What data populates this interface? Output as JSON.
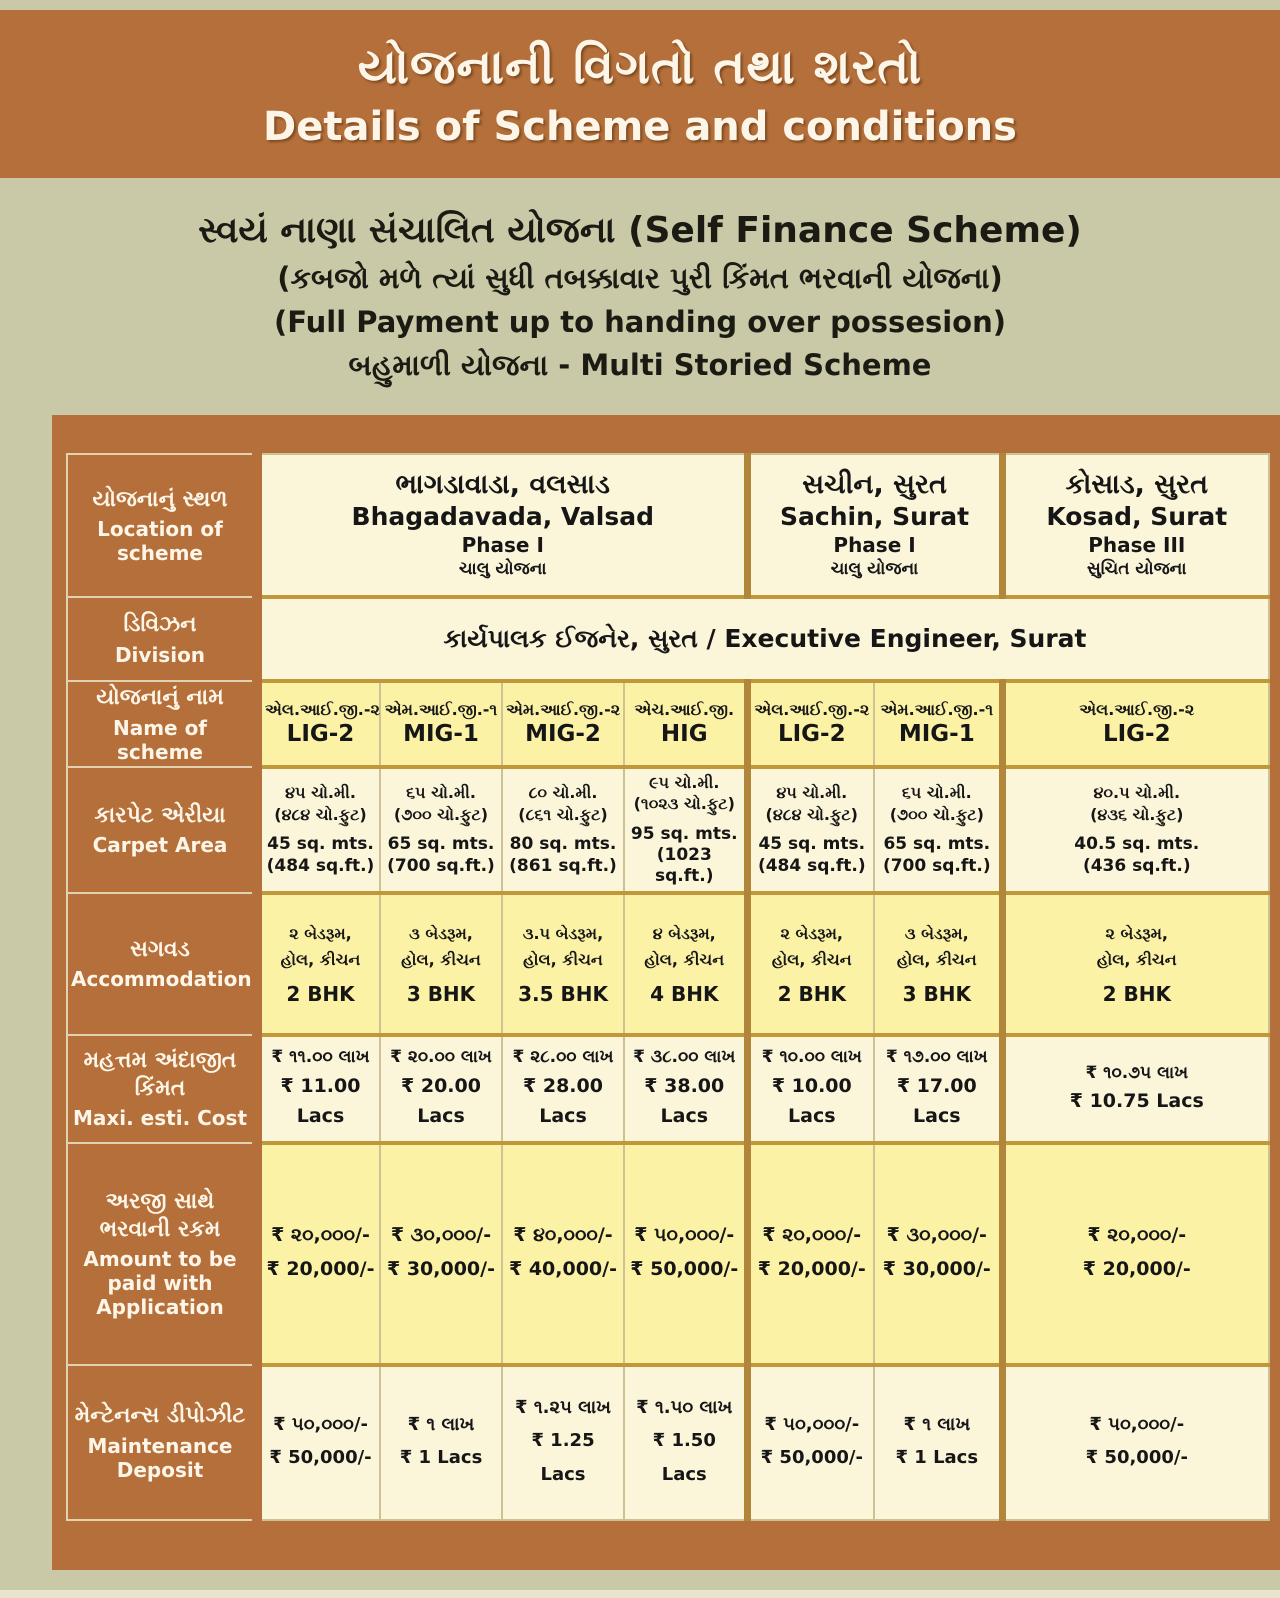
{
  "colors": {
    "page_background": "#c9c9a8",
    "brand_brown": "#b46f3a",
    "cell_cream": "#fbf5da",
    "cell_yellow": "#fcf2a6",
    "border_gold": "#c09739",
    "label_text": "#fdf6e8"
  },
  "header": {
    "title_gu": "યોજનાની વિગતો તથા શરતો",
    "title_en": "Details of Scheme and conditions"
  },
  "subtitle": {
    "line1": "સ્વયં નાણા સંચાલિત યોજના (Self Finance Scheme)",
    "line2": "(કબજો મળે ત્યાં સુધી તબક્કાવાર પુરી કિંમત ભરવાની યોજના)",
    "line3": "(Full Payment up to handing over possesion)",
    "line4": "બહુમાળી યોજના - Multi Storied Scheme"
  },
  "table": {
    "labels": {
      "location": {
        "gu": "યોજનાનું સ્થળ",
        "en": "Location of scheme"
      },
      "division": {
        "gu": "ડિવિઝન",
        "en": "Division"
      },
      "scheme_name": {
        "gu": "યોજનાનું નામ",
        "en": "Name of scheme"
      },
      "carpet": {
        "gu": "કારપેટ એરીયા",
        "en": "Carpet Area"
      },
      "accommodation": {
        "gu": "સગવડ",
        "en": "Accommodation"
      },
      "cost": {
        "gu": "મહત્તમ અંદાજીત કિંમત",
        "en": "Maxi. esti. Cost"
      },
      "amount": {
        "gu": "અરજી સાથે ભરવાની રકમ",
        "en": "Amount to be paid with Application"
      },
      "deposit": {
        "gu": "મેન્ટેનન્સ ડીપોઝીટ",
        "en": "Maintenance Deposit"
      }
    },
    "locations": [
      {
        "gu": "ભાગડાવાડા, વલસાડ",
        "en": "Bhagadavada, Valsad",
        "phase": "Phase I",
        "status": "ચાલુ યોજના"
      },
      {
        "gu": "સચીન, સુરત",
        "en": "Sachin, Surat",
        "phase": "Phase I",
        "status": "ચાલુ યોજના"
      },
      {
        "gu": "કોસાડ, સુરત",
        "en": "Kosad, Surat",
        "phase": "Phase III",
        "status": "સુચિત યોજના"
      }
    ],
    "division_value": "કાર્યપાલક ઈજનેર, સુરત / Executive Engineer, Surat",
    "columns": [
      {
        "name_gu": "એલ.આઈ.જી.-૨",
        "name_en": "LIG-2",
        "carpet_gu1": "૪૫ ચો.મી.",
        "carpet_gu2": "(૪૮૪ ચો.ફુટ)",
        "carpet_en1": "45 sq. mts.",
        "carpet_en2": "(484 sq.ft.)",
        "accom_gu1": "૨ બેડરૂમ,",
        "accom_gu2": "હોલ, કીચન",
        "accom_en": "2 BHK",
        "cost_gu": "₹ ૧૧.૦૦ લાખ",
        "cost_en": "₹ 11.00 Lacs",
        "amount_gu": "₹ ૨૦,૦૦૦/-",
        "amount_en": "₹ 20,000/-",
        "deposit_gu": "₹ ૫૦,૦૦૦/-",
        "deposit_en": "₹ 50,000/-"
      },
      {
        "name_gu": "એમ.આઈ.જી.-૧",
        "name_en": "MIG-1",
        "carpet_gu1": "૬૫ ચો.મી.",
        "carpet_gu2": "(૭૦૦ ચો.ફુટ)",
        "carpet_en1": "65 sq. mts.",
        "carpet_en2": "(700 sq.ft.)",
        "accom_gu1": "૩ બેડરૂમ,",
        "accom_gu2": "હોલ, કીચન",
        "accom_en": "3 BHK",
        "cost_gu": "₹ ૨૦.૦૦ લાખ",
        "cost_en": "₹ 20.00 Lacs",
        "amount_gu": "₹ ૩૦,૦૦૦/-",
        "amount_en": "₹ 30,000/-",
        "deposit_gu": "₹ ૧ લાખ",
        "deposit_en": "₹ 1 Lacs"
      },
      {
        "name_gu": "એમ.આઈ.જી.-૨",
        "name_en": "MIG-2",
        "carpet_gu1": "૮૦ ચો.મી.",
        "carpet_gu2": "(૮૬૧ ચો.ફુટ)",
        "carpet_en1": "80 sq. mts.",
        "carpet_en2": "(861 sq.ft.)",
        "accom_gu1": "૩.૫ બેડરૂમ,",
        "accom_gu2": "હોલ, કીચન",
        "accom_en": "3.5 BHK",
        "cost_gu": "₹ ૨૮.૦૦ લાખ",
        "cost_en": "₹ 28.00 Lacs",
        "amount_gu": "₹ ૪૦,૦૦૦/-",
        "amount_en": "₹ 40,000/-",
        "deposit_gu": "₹ ૧.૨૫ લાખ",
        "deposit_en": "₹ 1.25 Lacs"
      },
      {
        "name_gu": "એચ.આઈ.જી.",
        "name_en": "HIG",
        "carpet_gu1": "૯૫ ચો.મી.",
        "carpet_gu2": "(૧૦૨૩ ચો.ફુટ)",
        "carpet_en1": "95 sq. mts.",
        "carpet_en2": "(1023 sq.ft.)",
        "accom_gu1": "૪ બેડરૂમ,",
        "accom_gu2": "હોલ, કીચન",
        "accom_en": "4 BHK",
        "cost_gu": "₹ ૩૮.૦૦ લાખ",
        "cost_en": "₹ 38.00 Lacs",
        "amount_gu": "₹ ૫૦,૦૦૦/-",
        "amount_en": "₹ 50,000/-",
        "deposit_gu": "₹ ૧.૫૦ લાખ",
        "deposit_en": "₹ 1.50 Lacs"
      },
      {
        "name_gu": "એલ.આઈ.જી.-૨",
        "name_en": "LIG-2",
        "carpet_gu1": "૪૫ ચો.મી.",
        "carpet_gu2": "(૪૮૪ ચો.ફુટ)",
        "carpet_en1": "45 sq. mts.",
        "carpet_en2": "(484 sq.ft.)",
        "accom_gu1": "૨ બેડરૂમ,",
        "accom_gu2": "હોલ, કીચન",
        "accom_en": "2 BHK",
        "cost_gu": "₹ ૧૦.૦૦ લાખ",
        "cost_en": "₹ 10.00 Lacs",
        "amount_gu": "₹ ૨૦,૦૦૦/-",
        "amount_en": "₹ 20,000/-",
        "deposit_gu": "₹ ૫૦,૦૦૦/-",
        "deposit_en": "₹ 50,000/-"
      },
      {
        "name_gu": "એમ.આઈ.જી.-૧",
        "name_en": "MIG-1",
        "carpet_gu1": "૬૫ ચો.મી.",
        "carpet_gu2": "(૭૦૦ ચો.ફુટ)",
        "carpet_en1": "65 sq. mts.",
        "carpet_en2": "(700 sq.ft.)",
        "accom_gu1": "૩ બેડરૂમ,",
        "accom_gu2": "હોલ, કીચન",
        "accom_en": "3 BHK",
        "cost_gu": "₹ ૧૭.૦૦ લાખ",
        "cost_en": "₹ 17.00 Lacs",
        "amount_gu": "₹ ૩૦,૦૦૦/-",
        "amount_en": "₹ 30,000/-",
        "deposit_gu": "₹ ૧ લાખ",
        "deposit_en": "₹ 1 Lacs"
      },
      {
        "name_gu": "એલ.આઈ.જી.-૨",
        "name_en": "LIG-2",
        "carpet_gu1": "૪૦.૫ ચો.મી.",
        "carpet_gu2": "(૪૩૬ ચો.ફુટ)",
        "carpet_en1": "40.5 sq. mts.",
        "carpet_en2": "(436 sq.ft.)",
        "accom_gu1": "૨ બેડરૂમ,",
        "accom_gu2": "હોલ, કીચન",
        "accom_en": "2 BHK",
        "cost_gu": "₹ ૧૦.૭૫ લાખ",
        "cost_en": "₹ 10.75 Lacs",
        "amount_gu": "₹ ૨૦,૦૦૦/-",
        "amount_en": "₹ 20,000/-",
        "deposit_gu": "₹ ૫૦,૦૦૦/-",
        "deposit_en": "₹ 50,000/-"
      }
    ]
  }
}
